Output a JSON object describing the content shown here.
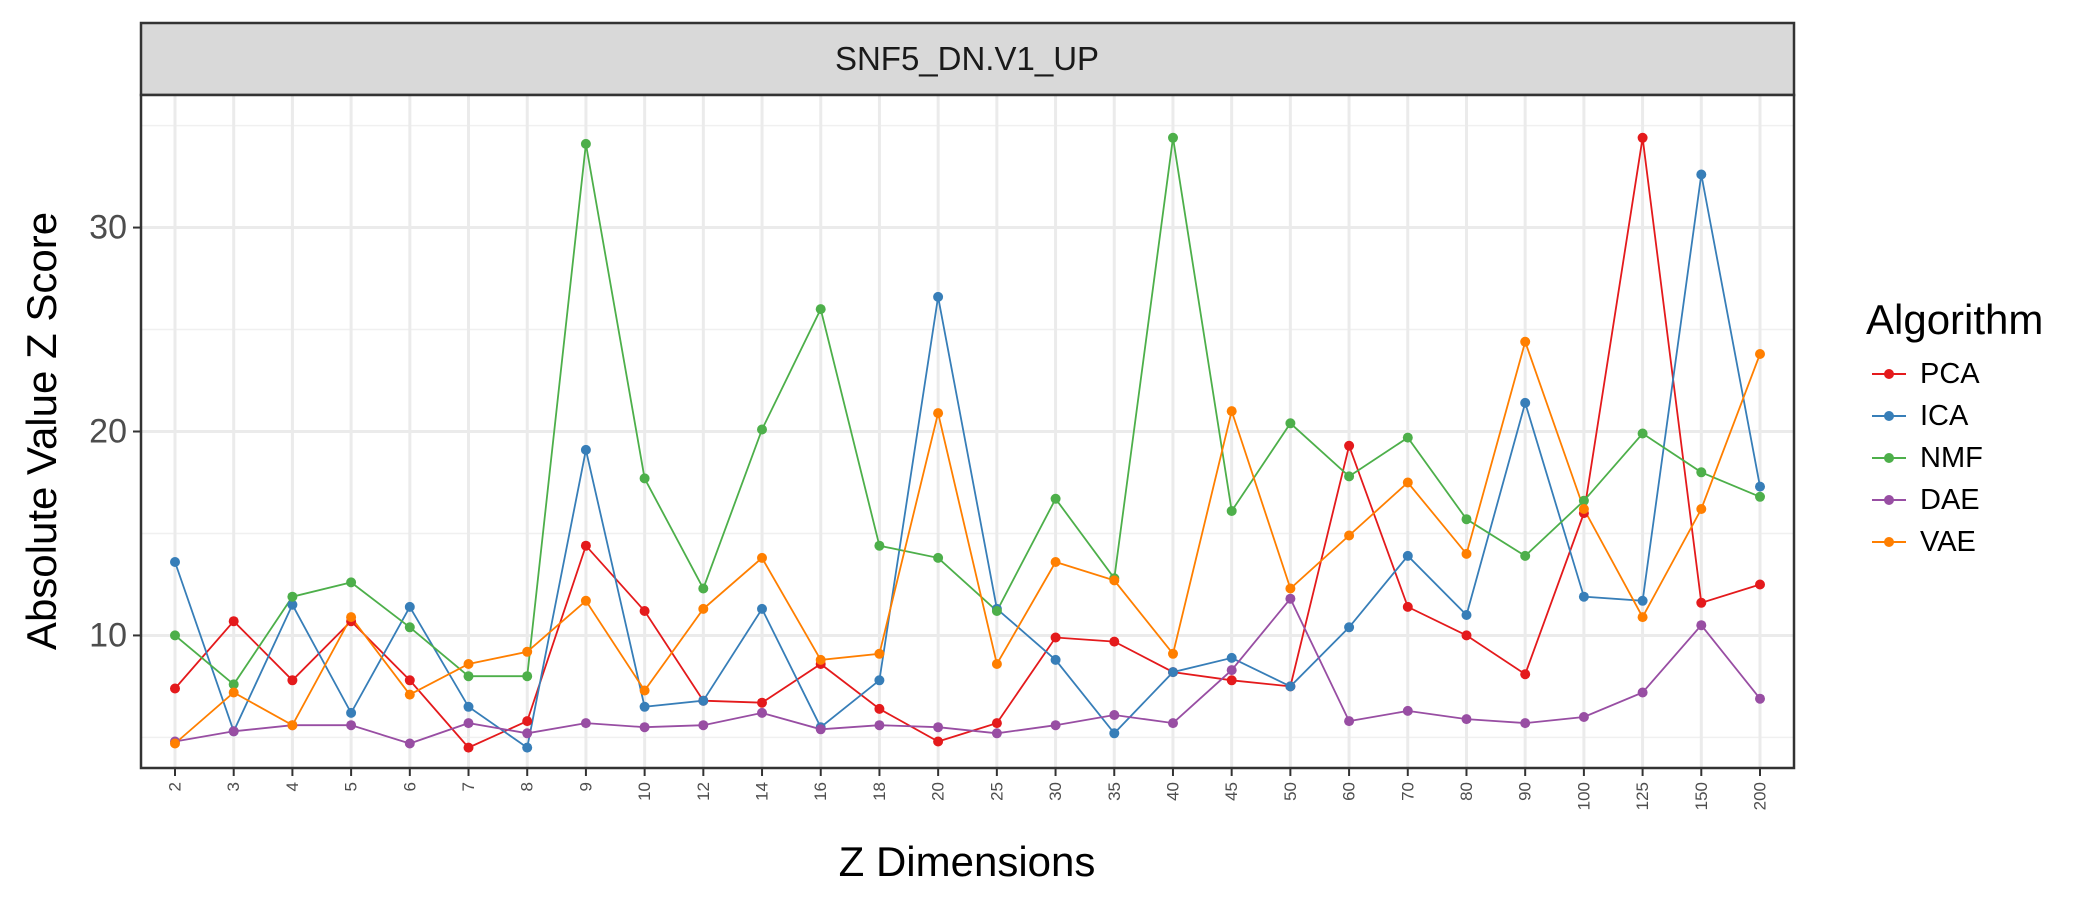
{
  "chart_data": {
    "type": "line",
    "title": "",
    "facet_label": "SNF5_DN.V1_UP",
    "xlabel": "Z Dimensions",
    "ylabel": "Absolute Value Z Score",
    "x_scale": "categorical",
    "categories": [
      "2",
      "3",
      "4",
      "5",
      "6",
      "7",
      "8",
      "9",
      "10",
      "12",
      "14",
      "16",
      "18",
      "20",
      "25",
      "30",
      "35",
      "40",
      "45",
      "50",
      "60",
      "70",
      "80",
      "90",
      "100",
      "125",
      "150",
      "200"
    ],
    "ylim": [
      3.5,
      36.5
    ],
    "yticks": [
      10,
      20,
      30
    ],
    "grid": true,
    "legend": {
      "title": "Algorithm",
      "position": "right"
    },
    "series": [
      {
        "name": "PCA",
        "color": "#e41a1c",
        "values": [
          7.4,
          10.7,
          7.8,
          10.7,
          7.8,
          4.5,
          5.8,
          14.4,
          11.2,
          6.8,
          6.7,
          8.6,
          6.4,
          4.8,
          5.7,
          9.9,
          9.7,
          8.2,
          7.8,
          7.5,
          19.3,
          11.4,
          10.0,
          8.1,
          16.0,
          34.4,
          11.6,
          12.5
        ]
      },
      {
        "name": "ICA",
        "color": "#377eb8",
        "values": [
          13.6,
          5.3,
          11.5,
          6.2,
          11.4,
          6.5,
          4.5,
          19.1,
          6.5,
          6.8,
          11.3,
          5.5,
          7.8,
          26.6,
          11.3,
          8.8,
          5.2,
          8.2,
          8.9,
          7.5,
          10.4,
          13.9,
          11.0,
          21.4,
          11.9,
          11.7,
          32.6,
          17.3
        ]
      },
      {
        "name": "NMF",
        "color": "#4daf4a",
        "values": [
          10.0,
          7.6,
          11.9,
          12.6,
          10.4,
          8.0,
          8.0,
          34.1,
          17.7,
          12.3,
          20.1,
          26.0,
          14.4,
          13.8,
          11.2,
          16.7,
          12.8,
          34.4,
          16.1,
          20.4,
          17.8,
          19.7,
          15.7,
          13.9,
          16.6,
          19.9,
          18.0,
          16.8
        ]
      },
      {
        "name": "DAE",
        "color": "#984ea3",
        "values": [
          4.8,
          5.3,
          5.6,
          5.6,
          4.7,
          5.7,
          5.2,
          5.7,
          5.5,
          5.6,
          6.2,
          5.4,
          5.6,
          5.5,
          5.2,
          5.6,
          6.1,
          5.7,
          8.3,
          11.8,
          5.8,
          6.3,
          5.9,
          5.7,
          6.0,
          7.2,
          10.5,
          6.9
        ]
      },
      {
        "name": "VAE",
        "color": "#ff7f00",
        "values": [
          4.7,
          7.2,
          5.6,
          10.9,
          7.1,
          8.6,
          9.2,
          11.7,
          7.3,
          11.3,
          13.8,
          8.8,
          9.1,
          20.9,
          8.6,
          13.6,
          12.7,
          9.1,
          21.0,
          12.3,
          14.9,
          17.5,
          14.0,
          24.4,
          16.2,
          10.9,
          16.2,
          23.8
        ]
      }
    ]
  }
}
